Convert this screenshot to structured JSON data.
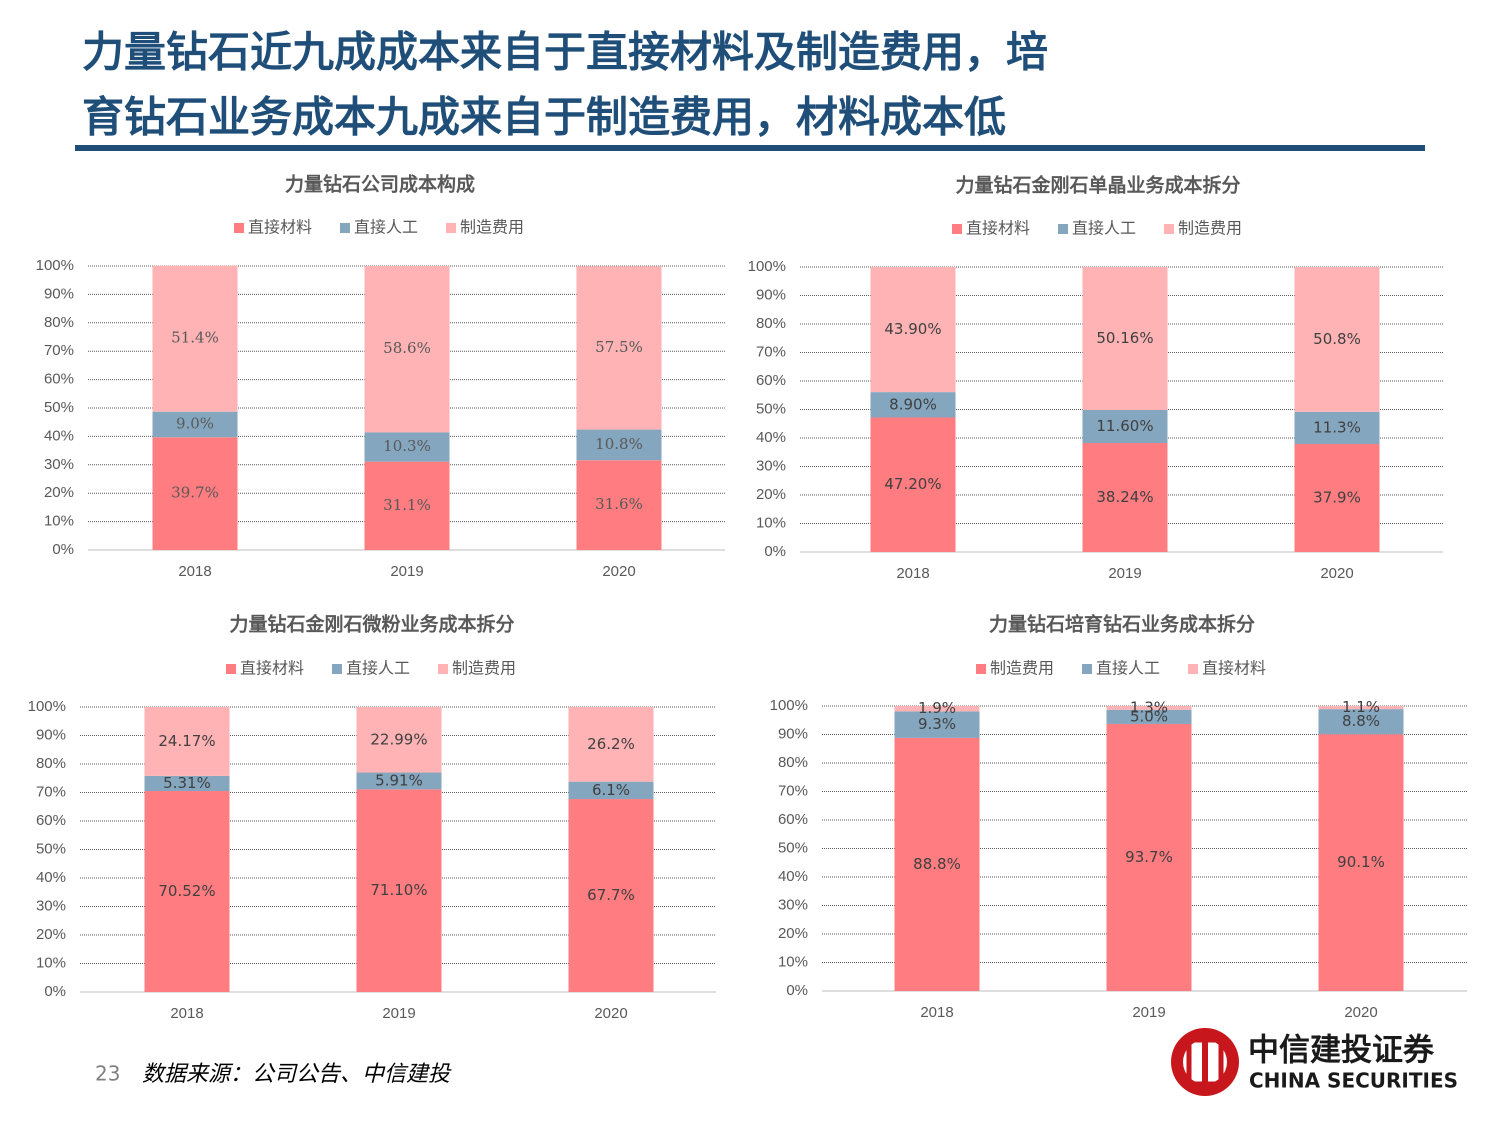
{
  "header": {
    "title_line1": "力量钻石近九成成本来自于直接材料及制造费用，培",
    "title_line2": "育钻石业务成本九成来自于制造费用，材料成本低"
  },
  "footer": {
    "page": "23",
    "source": "数据来源：公司公告、中信建投"
  },
  "logo": {
    "name_cn": "中信建投证券",
    "name_en": "CHINA SECURITIES"
  },
  "chart_data": [
    {
      "type": "bar",
      "stacked": true,
      "title": "力量钻石公司成本构成",
      "categories": [
        "2018",
        "2019",
        "2020"
      ],
      "series": [
        {
          "name": "直接材料",
          "color": "#ff7c80",
          "values": [
            39.7,
            31.1,
            31.6
          ],
          "value_labels": [
            "39.7%",
            "31.1%",
            "31.6%"
          ]
        },
        {
          "name": "直接人工",
          "color": "#84a6bf",
          "values": [
            9.0,
            10.3,
            10.8
          ],
          "value_labels": [
            "9.0%",
            "10.3%",
            "10.8%"
          ]
        },
        {
          "name": "制造费用",
          "color": "#ffb3b5",
          "values": [
            51.4,
            58.6,
            57.5
          ],
          "value_labels": [
            "51.4%",
            "58.6%",
            "57.5%"
          ]
        }
      ],
      "ylim": [
        0,
        100
      ],
      "yticks": [
        {
          "value": 0,
          "label": "0%"
        },
        {
          "value": 10,
          "label": "10%"
        },
        {
          "value": 20,
          "label": "20%"
        },
        {
          "value": 30,
          "label": "30%"
        },
        {
          "value": 40,
          "label": "40%"
        },
        {
          "value": 50,
          "label": "50%"
        },
        {
          "value": 60,
          "label": "60%"
        },
        {
          "value": 70,
          "label": "70%"
        },
        {
          "value": 80,
          "label": "80%"
        },
        {
          "value": 90,
          "label": "90%"
        },
        {
          "value": 100,
          "label": "100%"
        }
      ],
      "grid": true,
      "legend": "top"
    },
    {
      "type": "bar",
      "stacked": true,
      "title": "力量钻石金刚石单晶业务成本拆分",
      "categories": [
        "2018",
        "2019",
        "2020"
      ],
      "series": [
        {
          "name": "直接材料",
          "color": "#ff7c80",
          "values": [
            47.2,
            38.24,
            37.9
          ],
          "value_labels": [
            "47.20%",
            "38.24%",
            "37.9%"
          ]
        },
        {
          "name": "直接人工",
          "color": "#84a6bf",
          "values": [
            8.9,
            11.6,
            11.3
          ],
          "value_labels": [
            "8.90%",
            "11.60%",
            "11.3%"
          ]
        },
        {
          "name": "制造费用",
          "color": "#ffb3b5",
          "values": [
            43.9,
            50.16,
            50.8
          ],
          "value_labels": [
            "43.90%",
            "50.16%",
            "50.8%"
          ]
        }
      ],
      "ylim": [
        0,
        100
      ],
      "yticks": [
        {
          "value": 0,
          "label": "0%"
        },
        {
          "value": 10,
          "label": "10%"
        },
        {
          "value": 20,
          "label": "20%"
        },
        {
          "value": 30,
          "label": "30%"
        },
        {
          "value": 40,
          "label": "40%"
        },
        {
          "value": 50,
          "label": "50%"
        },
        {
          "value": 60,
          "label": "60%"
        },
        {
          "value": 70,
          "label": "70%"
        },
        {
          "value": 80,
          "label": "80%"
        },
        {
          "value": 90,
          "label": "90%"
        },
        {
          "value": 100,
          "label": "100%"
        }
      ],
      "grid": true,
      "legend": "top"
    },
    {
      "type": "bar",
      "stacked": true,
      "title": "力量钻石金刚石微粉业务成本拆分",
      "categories": [
        "2018",
        "2019",
        "2020"
      ],
      "series": [
        {
          "name": "直接材料",
          "color": "#ff7c80",
          "values": [
            70.52,
            71.1,
            67.7
          ],
          "value_labels": [
            "70.52%",
            "71.10%",
            "67.7%"
          ]
        },
        {
          "name": "直接人工",
          "color": "#84a6bf",
          "values": [
            5.31,
            5.91,
            6.1
          ],
          "value_labels": [
            "5.31%",
            "5.91%",
            "6.1%"
          ]
        },
        {
          "name": "制造费用",
          "color": "#ffb3b5",
          "values": [
            24.17,
            22.99,
            26.2
          ],
          "value_labels": [
            "24.17%",
            "22.99%",
            "26.2%"
          ]
        }
      ],
      "ylim": [
        0,
        100
      ],
      "yticks": [
        {
          "value": 0,
          "label": "0%"
        },
        {
          "value": 10,
          "label": "10%"
        },
        {
          "value": 20,
          "label": "20%"
        },
        {
          "value": 30,
          "label": "30%"
        },
        {
          "value": 40,
          "label": "40%"
        },
        {
          "value": 50,
          "label": "50%"
        },
        {
          "value": 60,
          "label": "60%"
        },
        {
          "value": 70,
          "label": "70%"
        },
        {
          "value": 80,
          "label": "80%"
        },
        {
          "value": 90,
          "label": "90%"
        },
        {
          "value": 100,
          "label": "100%"
        }
      ],
      "grid": true,
      "legend": "top"
    },
    {
      "type": "bar",
      "stacked": true,
      "title": "力量钻石培育钻石业务成本拆分",
      "categories": [
        "2018",
        "2019",
        "2020"
      ],
      "series": [
        {
          "name": "制造费用",
          "color": "#ff7c80",
          "values": [
            88.8,
            93.7,
            90.1
          ],
          "value_labels": [
            "88.8%",
            "93.7%",
            "90.1%"
          ]
        },
        {
          "name": "直接人工",
          "color": "#84a6bf",
          "values": [
            9.3,
            5.0,
            8.8
          ],
          "value_labels": [
            "9.3%",
            "5.0%",
            "8.8%"
          ]
        },
        {
          "name": "直接材料",
          "color": "#ffb3b5",
          "values": [
            1.9,
            1.3,
            1.1
          ],
          "value_labels": [
            "1.9%",
            "1.3%",
            "1.1%"
          ]
        }
      ],
      "ylim": [
        0,
        100
      ],
      "yticks": [
        {
          "value": 0,
          "label": "0%"
        },
        {
          "value": 10,
          "label": "10%"
        },
        {
          "value": 20,
          "label": "20%"
        },
        {
          "value": 30,
          "label": "30%"
        },
        {
          "value": 40,
          "label": "40%"
        },
        {
          "value": 50,
          "label": "50%"
        },
        {
          "value": 60,
          "label": "60%"
        },
        {
          "value": 70,
          "label": "70%"
        },
        {
          "value": 80,
          "label": "80%"
        },
        {
          "value": 90,
          "label": "90%"
        },
        {
          "value": 100,
          "label": "100%"
        }
      ],
      "grid": true,
      "legend": "top"
    }
  ]
}
